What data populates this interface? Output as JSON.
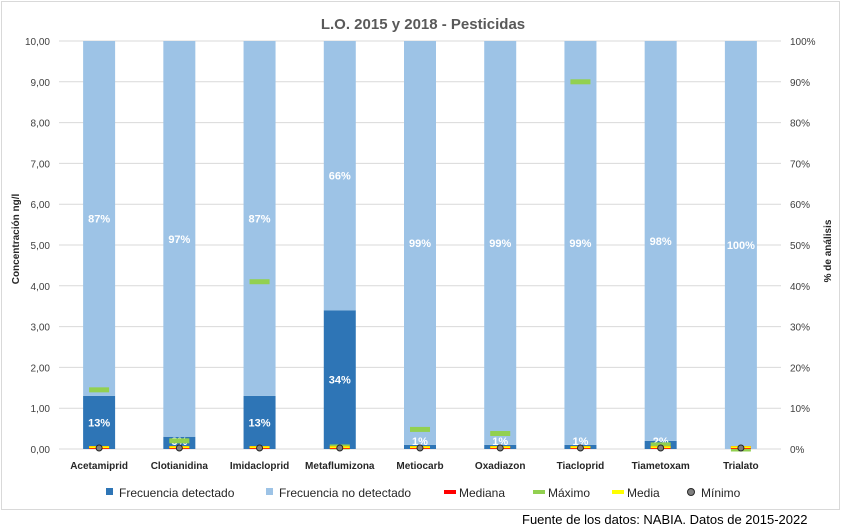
{
  "chart_data": {
    "type": "bar",
    "title": "L.O. 2015 y 2018 - Pesticidas",
    "ylabel": "Concentración  ng/l",
    "y2label": "% de análisis",
    "ylim": [
      0,
      10
    ],
    "y2lim": [
      0,
      100
    ],
    "yticks": [
      "0,00",
      "1,00",
      "2,00",
      "3,00",
      "4,00",
      "5,00",
      "6,00",
      "7,00",
      "8,00",
      "9,00",
      "10,00"
    ],
    "y2ticks": [
      "0%",
      "10%",
      "20%",
      "30%",
      "40%",
      "50%",
      "60%",
      "70%",
      "80%",
      "90%",
      "100%"
    ],
    "categories": [
      "Acetamiprid",
      "Clotianidina",
      "Imidacloprid",
      "Metaflumizona",
      "Metiocarb",
      "Oxadiazon",
      "Tiacloprid",
      "Tiametoxam",
      "Trialato"
    ],
    "series": [
      {
        "name": "Frecuencia detectado",
        "axis": "y2",
        "color": "#2e75b6",
        "values": [
          13,
          3,
          13,
          34,
          1,
          1,
          1,
          2,
          0
        ],
        "labels": [
          "13%",
          "3%",
          "13%",
          "34%",
          "1%",
          "1%",
          "1%",
          "2%",
          ""
        ]
      },
      {
        "name": "Frecuencia no detectado",
        "axis": "y2",
        "color": "#9dc3e6",
        "values": [
          87,
          97,
          87,
          66,
          99,
          99,
          99,
          98,
          100
        ],
        "labels": [
          "87%",
          "97%",
          "87%",
          "66%",
          "99%",
          "99%",
          "99%",
          "98%",
          "100%"
        ]
      },
      {
        "name": "Mediana",
        "axis": "y",
        "color": "#ff0000",
        "values": [
          0,
          0,
          0,
          0,
          0,
          0,
          0,
          0,
          0
        ]
      },
      {
        "name": "Máximo",
        "axis": "y",
        "color": "#92d050",
        "values": [
          1.45,
          0.2,
          4.1,
          0.05,
          0.48,
          0.38,
          9.0,
          0.1,
          0
        ]
      },
      {
        "name": "Media",
        "axis": "y",
        "color": "#ffff00",
        "values": [
          0.02,
          0.02,
          0.02,
          0.02,
          0.02,
          0.02,
          0.02,
          0.02,
          0.02
        ]
      },
      {
        "name": "Mínimo",
        "axis": "y",
        "color": "#7f7f7f",
        "values": [
          0,
          0,
          0,
          0,
          0,
          0,
          0,
          0,
          0
        ]
      }
    ],
    "legend_position": "bottom"
  },
  "source": "Fuente de los datos: NABIA. Datos de 2015-2022"
}
